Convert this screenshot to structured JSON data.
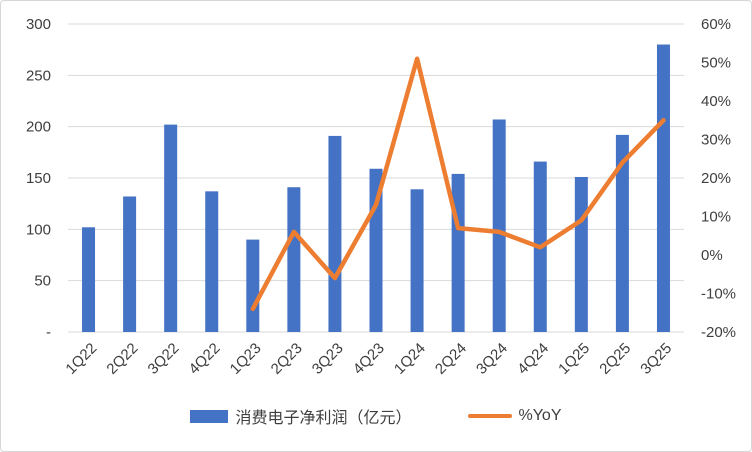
{
  "chart_data": {
    "type": "bar",
    "combo": "bar+line",
    "title": "",
    "categories": [
      "1Q22",
      "2Q22",
      "3Q22",
      "4Q22",
      "1Q23",
      "2Q23",
      "3Q23",
      "4Q23",
      "1Q24",
      "2Q24",
      "3Q24",
      "4Q24",
      "1Q25",
      "2Q25",
      "3Q25"
    ],
    "series": [
      {
        "name": "消费电子净利润（亿元）",
        "type": "bar",
        "axis": "left",
        "color": "#4472C4",
        "values": [
          102,
          132,
          202,
          137,
          90,
          141,
          191,
          159,
          139,
          154,
          207,
          166,
          151,
          192,
          280
        ]
      },
      {
        "name": "%YoY",
        "type": "line",
        "axis": "right",
        "color": "#ED7D31",
        "values": [
          null,
          null,
          null,
          null,
          -14,
          6,
          -6,
          13,
          51,
          7,
          6,
          2,
          9,
          24,
          35
        ]
      }
    ],
    "left_axis": {
      "min": 0,
      "max": 300,
      "step": 50,
      "tick_labels": [
        "300",
        "250",
        "200",
        "150",
        "100",
        "50",
        "-"
      ]
    },
    "right_axis": {
      "min": -20,
      "max": 60,
      "step": 10,
      "tick_labels": [
        "60%",
        "50%",
        "40%",
        "30%",
        "20%",
        "10%",
        "0%",
        "-10%",
        "-20%"
      ]
    },
    "grid": true,
    "gridline_color": "#D9D9D9",
    "legend_position": "bottom",
    "xlabel": "",
    "ylabel": ""
  },
  "legend": {
    "bar_label": "消费电子净利润（亿元）",
    "line_label": "%YoY"
  },
  "colors": {
    "bar": "#4472C4",
    "line": "#ED7D31",
    "grid": "#D9D9D9",
    "text": "#3f3f3f",
    "frame_border": "#d6d6d6"
  }
}
